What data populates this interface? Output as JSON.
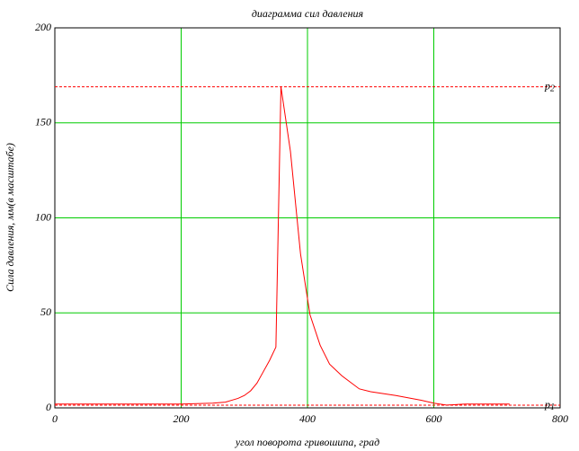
{
  "chart_data": {
    "type": "line",
    "title": "диаграмма сил давления",
    "x_label": "угол поворота гривошипа, град",
    "y_label": "Сила давления, мм(в масштабе)",
    "x": [
      0,
      100,
      200,
      250,
      270,
      290,
      300,
      310,
      320,
      330,
      340,
      350,
      358,
      373,
      389,
      404,
      420,
      435,
      454,
      482,
      500,
      540,
      580,
      600,
      620,
      650,
      680,
      720
    ],
    "series": [
      {
        "color": "#ff0000",
        "values": [
          2,
          2,
          2,
          2.5,
          3,
          5,
          6.5,
          9,
          13,
          19,
          25,
          32,
          169,
          135,
          81,
          49,
          33,
          23,
          17,
          10,
          8.5,
          6.5,
          4,
          2.5,
          1.5,
          2,
          2,
          2
        ]
      }
    ],
    "xlim": [
      0,
      800
    ],
    "ylim": [
      0,
      200
    ],
    "xticks": [
      0,
      200,
      400,
      600,
      800
    ],
    "yticks": [
      0,
      50,
      100,
      150,
      200
    ],
    "grid": true,
    "grid_color": "#00cc00",
    "reference_lines": [
      {
        "label": "p",
        "sub": "2",
        "value": 169,
        "color": "#ff0000"
      },
      {
        "label": "p",
        "sub": "1",
        "value": 1.4,
        "color": "#ff0000"
      }
    ]
  }
}
